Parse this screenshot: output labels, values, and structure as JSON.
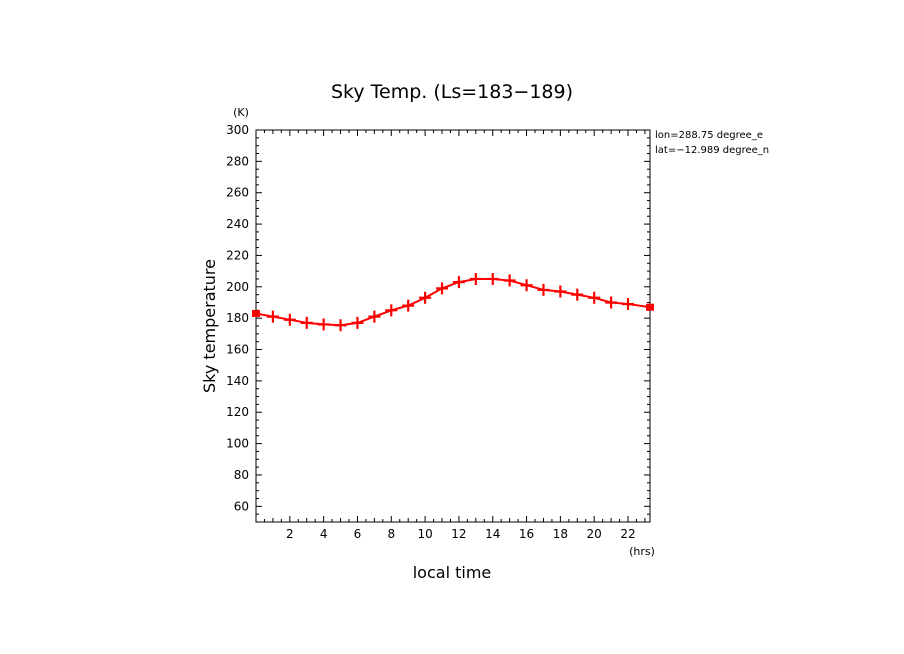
{
  "chart_data": {
    "type": "line",
    "title": "Sky Temp. (Ls=183−189)",
    "ylabel": "Sky temperature",
    "xlabel": "local time",
    "y_unit": "(K)",
    "x_unit": "(hrs)",
    "annotations": [
      "lon=288.75 degree_e",
      "lat=−12.989 degree_n"
    ],
    "xlim": [
      0,
      23.3
    ],
    "ylim": [
      50,
      300
    ],
    "x_ticks": [
      2,
      4,
      6,
      8,
      10,
      12,
      14,
      16,
      18,
      20,
      22
    ],
    "y_ticks": [
      60,
      80,
      100,
      120,
      140,
      160,
      180,
      200,
      220,
      240,
      260,
      280,
      300
    ],
    "grid": false,
    "series": [
      {
        "color": "#ff0000",
        "x": [
          0.0,
          1.0,
          2.0,
          3.0,
          4.0,
          5.0,
          6.0,
          7.0,
          8.0,
          9.0,
          10.0,
          11.0,
          12.0,
          13.0,
          14.0,
          15.0,
          16.0,
          17.0,
          18.0,
          19.0,
          20.0,
          21.0,
          22.0,
          23.3
        ],
        "values": [
          183,
          181,
          179,
          177,
          176,
          175.5,
          177,
          181,
          185,
          188,
          193,
          199,
          203,
          205,
          205,
          204,
          201,
          198,
          197,
          195,
          193,
          190,
          189,
          187
        ]
      }
    ]
  }
}
